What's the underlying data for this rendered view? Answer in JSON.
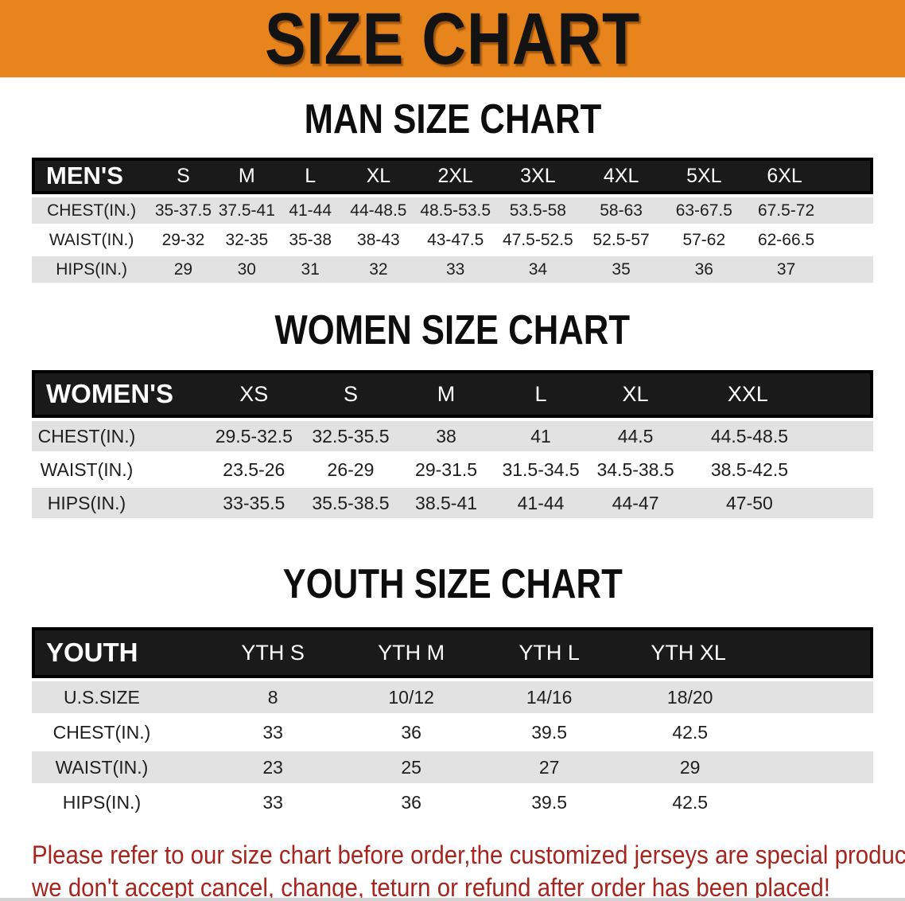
{
  "page": {
    "banner": {
      "title": "SIZE CHART"
    },
    "colors": {
      "header_bg": "#E8841C",
      "band_bg": "#1A1A1A",
      "row_gray": "#E2E2E2",
      "disclaimer_red": "#A6251E"
    },
    "sections": {
      "men": {
        "title": "MAN SIZE CHART",
        "table": {
          "label": "MEN'S",
          "columns": [
            "S",
            "M",
            "L",
            "XL",
            "2XL",
            "3XL",
            "4XL",
            "5XL",
            "6XL"
          ],
          "rows": [
            {
              "label": "CHEST(IN.)",
              "values": [
                "35-37.5",
                "37.5-41",
                "41-44",
                "44-48.5",
                "48.5-53.5",
                "53.5-58",
                "58-63",
                "63-67.5",
                "67.5-72"
              ]
            },
            {
              "label": "WAIST(IN.)",
              "values": [
                "29-32",
                "32-35",
                "35-38",
                "38-43",
                "43-47.5",
                "47.5-52.5",
                "52.5-57",
                "57-62",
                "62-66.5"
              ]
            },
            {
              "label": "HIPS(IN.)",
              "values": [
                "29",
                "30",
                "31",
                "32",
                "33",
                "34",
                "35",
                "36",
                "37"
              ]
            }
          ]
        }
      },
      "women": {
        "title": "WOMEN SIZE CHART",
        "table": {
          "label": "WOMEN'S",
          "columns": [
            "XS",
            "S",
            "M",
            "L",
            "XL",
            "XXL"
          ],
          "rows": [
            {
              "label": "CHEST(IN.)",
              "values": [
                "29.5-32.5",
                "32.5-35.5",
                "38",
                "41",
                "44.5",
                "44.5-48.5"
              ]
            },
            {
              "label": "WAIST(IN.)",
              "values": [
                "23.5-26",
                "26-29",
                "29-31.5",
                "31.5-34.5",
                "34.5-38.5",
                "38.5-42.5"
              ]
            },
            {
              "label": "HIPS(IN.)",
              "values": [
                "33-35.5",
                "35.5-38.5",
                "38.5-41",
                "41-44",
                "44-47",
                "47-50"
              ]
            }
          ]
        }
      },
      "youth": {
        "title": "YOUTH SIZE CHART",
        "table": {
          "label": "YOUTH",
          "columns": [
            "YTH S",
            "YTH M",
            "YTH L",
            "YTH XL"
          ],
          "rows": [
            {
              "label": "U.S.SIZE",
              "values": [
                "8",
                "10/12",
                "14/16",
                "18/20"
              ]
            },
            {
              "label": "CHEST(IN.)",
              "values": [
                "33",
                "36",
                "39.5",
                "42.5"
              ]
            },
            {
              "label": "WAIST(IN.)",
              "values": [
                "23",
                "25",
                "27",
                "29"
              ]
            },
            {
              "label": "HIPS(IN.)",
              "values": [
                "33",
                "36",
                "39.5",
                "42.5"
              ]
            }
          ]
        }
      }
    },
    "disclaimer": {
      "line1": "Please refer to our size chart before order,the customized jerseys are special products,",
      "line2": "we don't accept cancel, change, teturn or refund after order has been placed!"
    }
  }
}
